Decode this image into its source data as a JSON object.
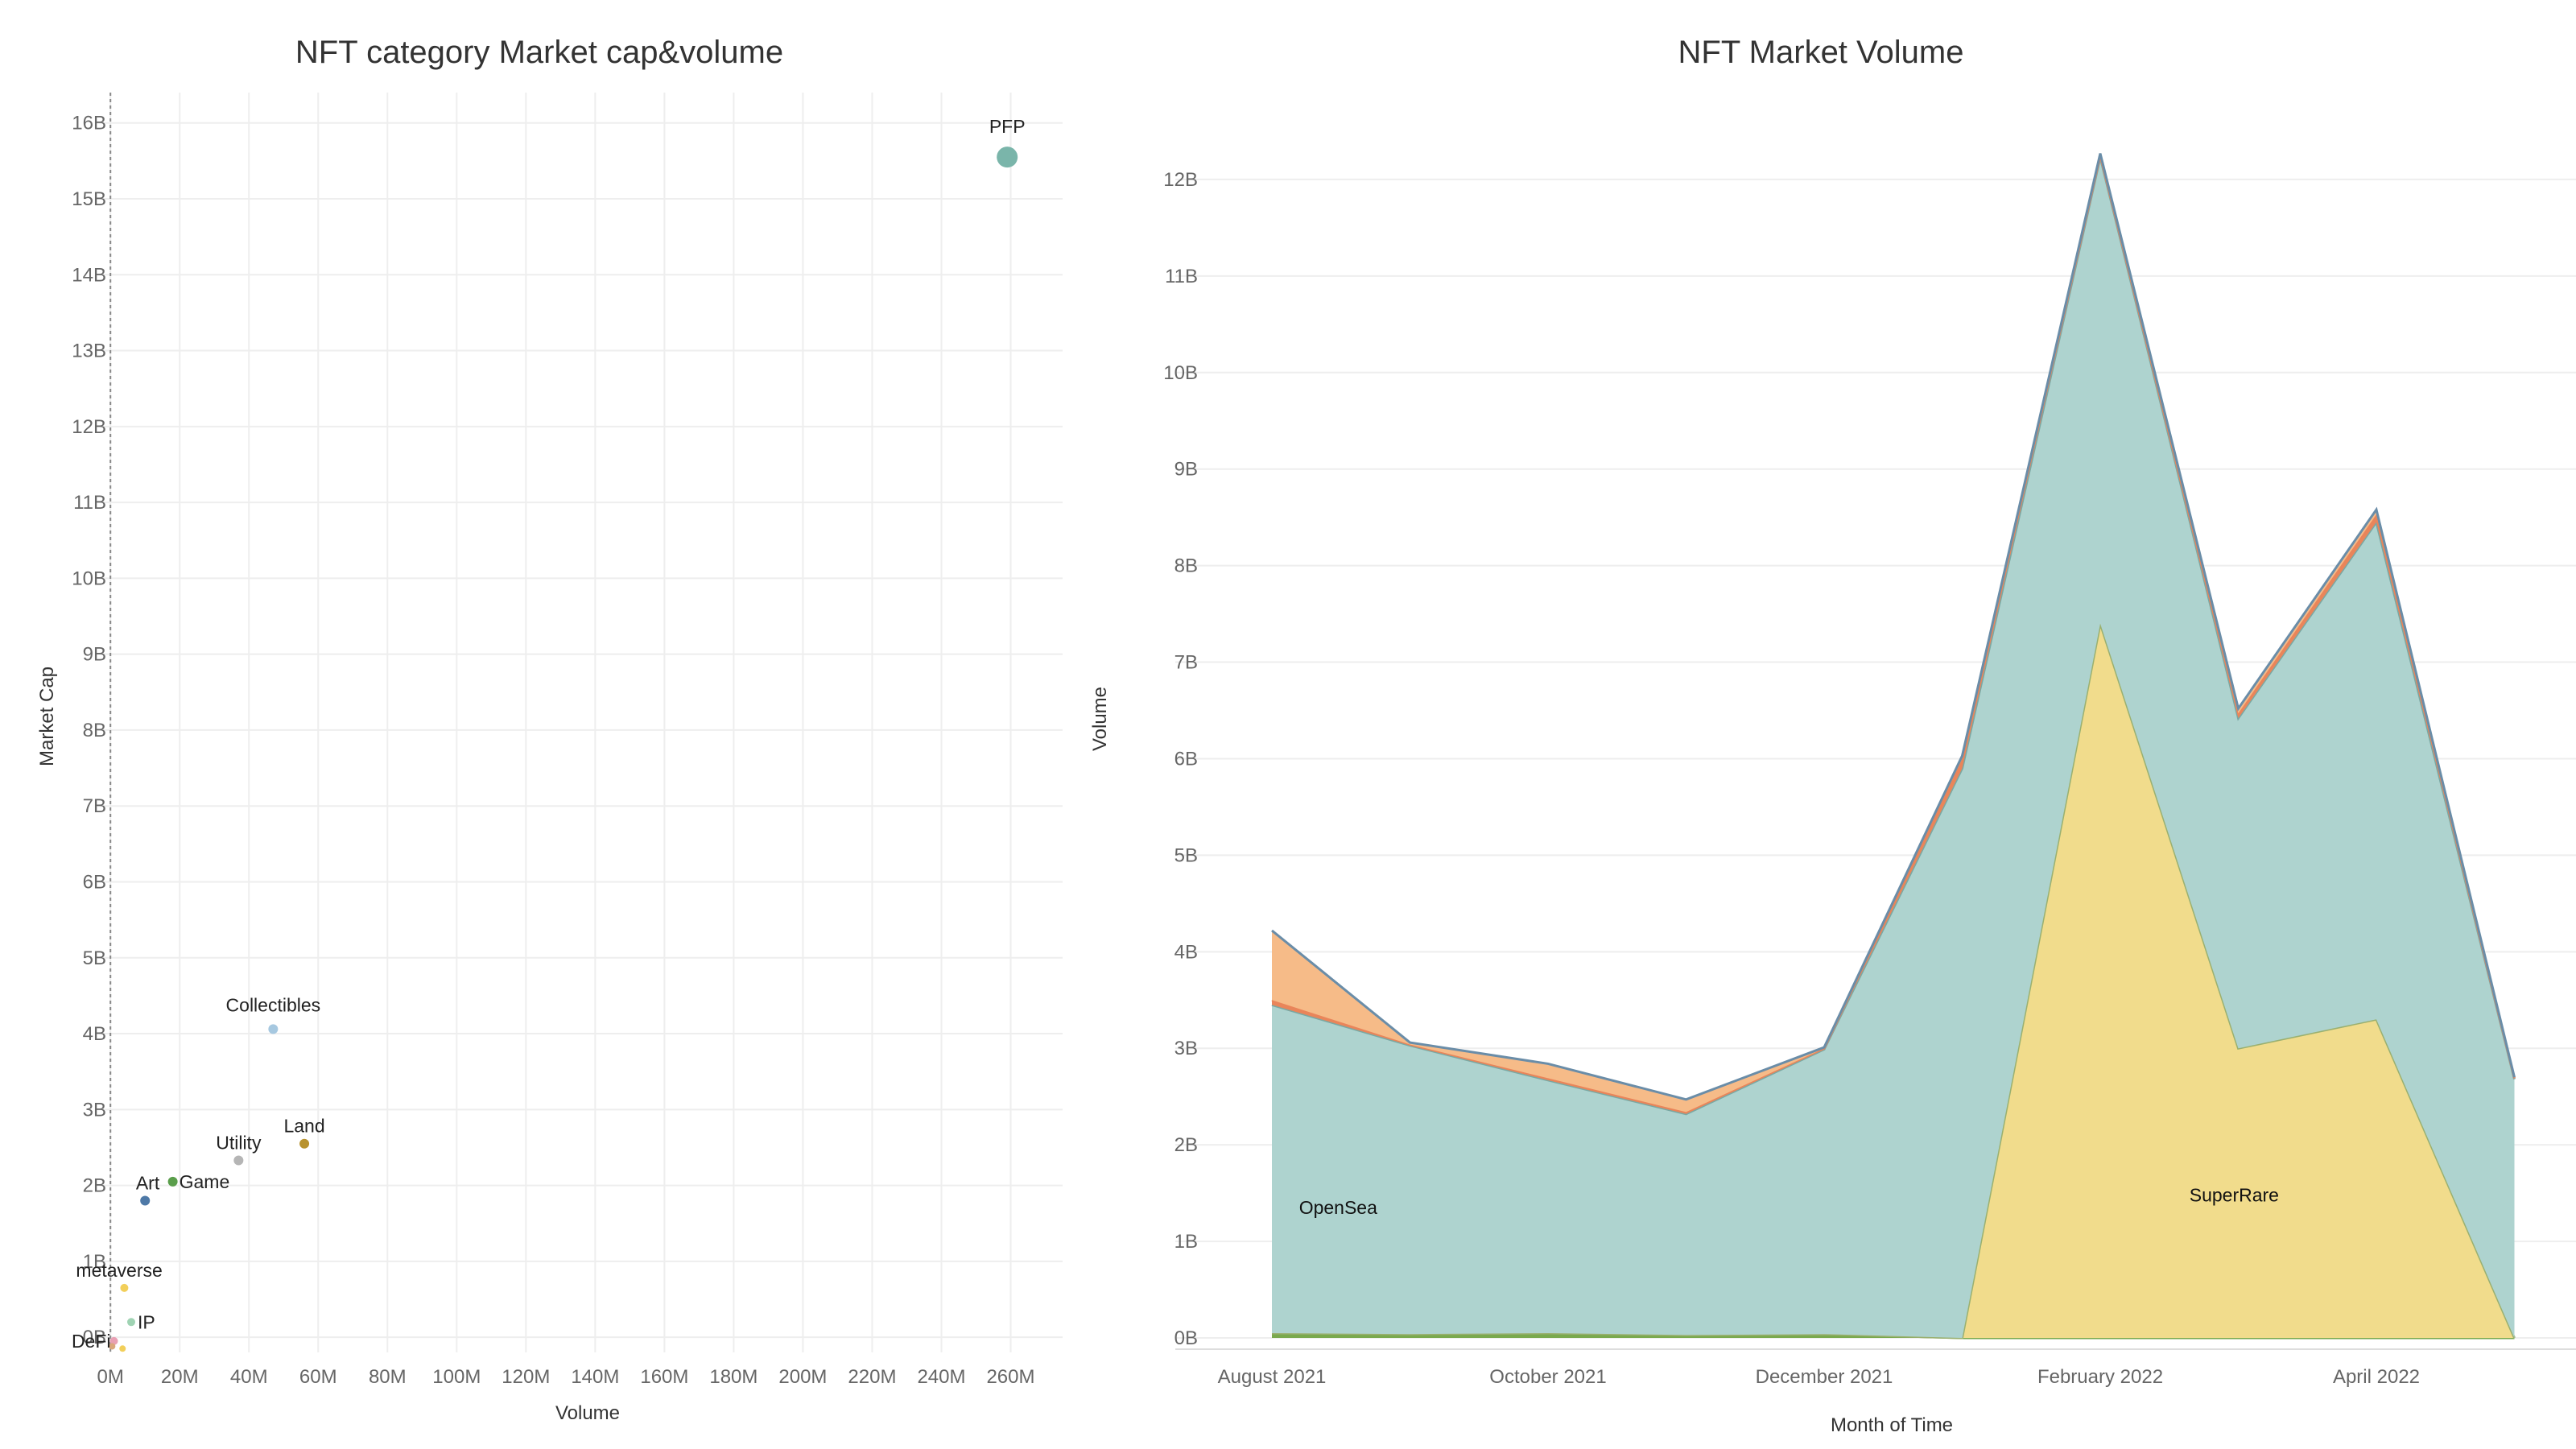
{
  "chart_data": [
    {
      "type": "scatter",
      "title": "NFT category Market cap&volume",
      "xlabel": "Volume",
      "ylabel": "Market Cap",
      "x_unit": "M",
      "y_unit": "B",
      "xlim": [
        -4,
        275
      ],
      "ylim": [
        -0.2,
        16.4
      ],
      "x_ticks": [
        "0M",
        "20M",
        "40M",
        "60M",
        "80M",
        "100M",
        "120M",
        "140M",
        "160M",
        "180M",
        "200M",
        "220M",
        "240M",
        "260M"
      ],
      "y_ticks": [
        "0B",
        "1B",
        "2B",
        "3B",
        "4B",
        "5B",
        "6B",
        "7B",
        "8B",
        "9B",
        "10B",
        "11B",
        "12B",
        "13B",
        "14B",
        "15B",
        "16B"
      ],
      "grid": true,
      "points": [
        {
          "name": "PFP",
          "x": 259,
          "y": 15.55,
          "color": "#7ab5aa",
          "size": 13,
          "label": "PFP"
        },
        {
          "name": "Collectibles",
          "x": 47,
          "y": 4.06,
          "color": "#a6c8e0",
          "size": 6,
          "label": "Collectibles"
        },
        {
          "name": "Land",
          "x": 56,
          "y": 2.55,
          "color": "#b8922e",
          "size": 6,
          "label": "Land"
        },
        {
          "name": "Utility",
          "x": 37,
          "y": 2.33,
          "color": "#b5b5b5",
          "size": 6,
          "label": "Utility"
        },
        {
          "name": "Game",
          "x": 18,
          "y": 2.05,
          "color": "#5a9e4b",
          "size": 6,
          "label": "Game"
        },
        {
          "name": "Art",
          "x": 10,
          "y": 1.8,
          "color": "#4e79a7",
          "size": 6,
          "label": "Art"
        },
        {
          "name": "metaverse",
          "x": 4,
          "y": 0.65,
          "color": "#f2cf5a",
          "size": 5,
          "label": "metaverse"
        },
        {
          "name": "IP",
          "x": 6,
          "y": 0.2,
          "color": "#9fd3b3",
          "size": 5,
          "label": "IP"
        },
        {
          "name": "DeFi",
          "x": 1,
          "y": -0.05,
          "color": "#e8a0b4",
          "size": 5,
          "label": "DeFi"
        },
        {
          "name": "",
          "x": 0.5,
          "y": -0.12,
          "color": "#d9a77c",
          "size": 4,
          "label": ""
        },
        {
          "name": "",
          "x": 3.5,
          "y": -0.15,
          "color": "#f2cf5a",
          "size": 4,
          "label": ""
        }
      ]
    },
    {
      "type": "area",
      "title": "NFT Market Volume",
      "xlabel": "Month of Time",
      "ylabel": "Volume",
      "y_unit": "B",
      "ylim": [
        -0.15,
        12.9
      ],
      "x_ticks": [
        "August 2021",
        "October 2021",
        "December 2021",
        "February 2022",
        "April 2022"
      ],
      "y_ticks": [
        "0B",
        "1B",
        "2B",
        "3B",
        "4B",
        "5B",
        "6B",
        "7B",
        "8B",
        "9B",
        "10B",
        "11B",
        "12B"
      ],
      "grid": true,
      "categories": [
        "2021-08",
        "2021-09",
        "2021-10",
        "2021-11",
        "2021-12",
        "2022-01",
        "2022-02",
        "2022-03",
        "2022-04",
        "2022-05"
      ],
      "series": [
        {
          "name": "",
          "color": "#79a94e",
          "values": [
            0.05,
            0.04,
            0.05,
            0.03,
            0.04,
            0,
            0,
            0,
            0,
            0
          ]
        },
        {
          "name": "SuperRare",
          "color": "#f1dc8c",
          "line": "#9ab070",
          "values": [
            0,
            0,
            0,
            0,
            0,
            0,
            7.4,
            3.0,
            3.3,
            0
          ]
        },
        {
          "name": "OpenSea",
          "color": "#aed3cf",
          "line": "#7aa8a3",
          "values": [
            3.4,
            2.99,
            2.62,
            2.29,
            2.95,
            5.9,
            4.83,
            3.42,
            5.15,
            2.68
          ]
        },
        {
          "name": "",
          "color": "#e9855a",
          "values": [
            0.05,
            0.01,
            0.02,
            0.02,
            0.01,
            0.1,
            0.02,
            0.05,
            0.08,
            0.01
          ]
        },
        {
          "name": "",
          "color": "#f6bb88",
          "line": "#6a8da8",
          "values": [
            0.72,
            0.02,
            0.15,
            0.13,
            0.01,
            0.03,
            0.02,
            0.05,
            0.05,
            0.01
          ]
        }
      ],
      "labels": [
        {
          "text": "OpenSea",
          "x": "2021-08",
          "xoff": 0.48,
          "y": 1.35
        },
        {
          "text": "SuperRare",
          "x": "2022-03",
          "xoff": -0.03,
          "y": 1.48
        }
      ]
    }
  ]
}
